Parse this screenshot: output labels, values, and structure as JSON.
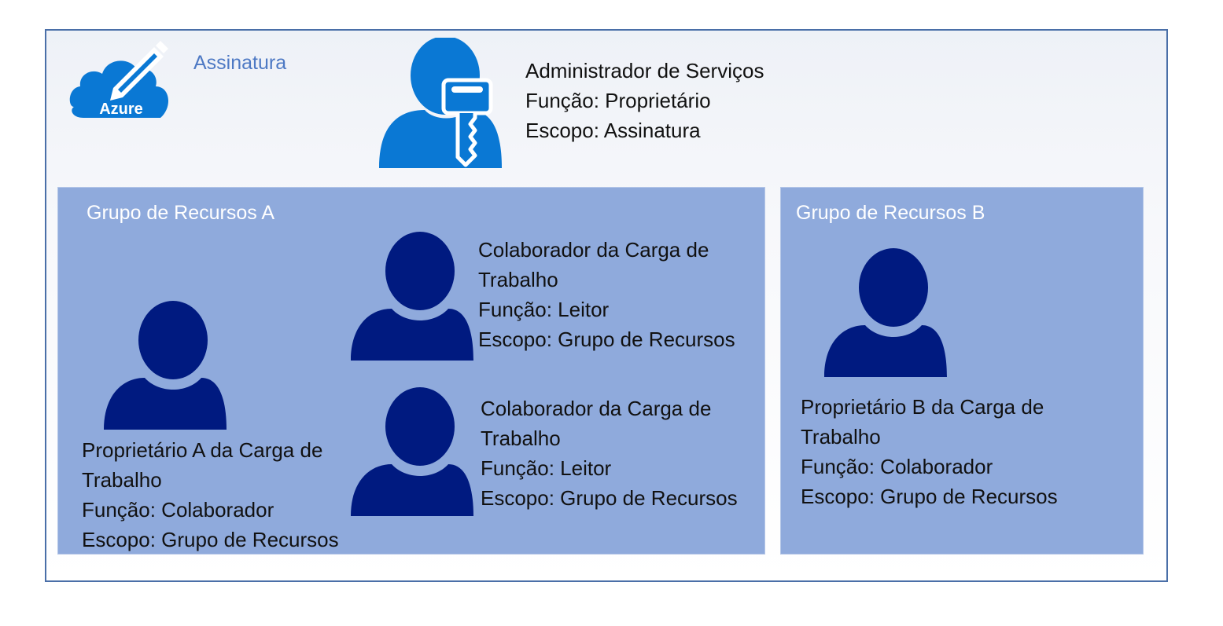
{
  "subscription": {
    "label": "Assinatura",
    "logo_text": "Azure",
    "logo_icon": "azure-cloud-pencil-icon"
  },
  "admin": {
    "icon": "user-key-icon",
    "name": "Administrador de Serviços",
    "role": "Função: Proprietário",
    "scope": "Escopo: Assinatura"
  },
  "group_a": {
    "title": "Grupo de Recursos A",
    "owner": {
      "icon": "user-icon",
      "name_line1": "Proprietário A da Carga de",
      "name_line2": "Trabalho",
      "role": "Função: Colaborador",
      "scope": "Escopo: Grupo de Recursos"
    },
    "contributor_1": {
      "icon": "user-icon",
      "name_line1": "Colaborador da Carga de",
      "name_line2": "Trabalho",
      "role": "Função: Leitor",
      "scope": "Escopo: Grupo de Recursos"
    },
    "contributor_2": {
      "icon": "user-icon",
      "name_line1": "Colaborador da Carga de",
      "name_line2": "Trabalho",
      "role": "Função: Leitor",
      "scope": "Escopo: Grupo de Recursos"
    }
  },
  "group_b": {
    "title": "Grupo de Recursos B",
    "owner": {
      "icon": "user-icon",
      "name_line1": "Proprietário B da Carga de",
      "name_line2": "Trabalho",
      "role": "Função: Colaborador",
      "scope": "Escopo: Grupo de Recursos"
    }
  },
  "colors": {
    "border": "#4a6fa8",
    "group_fill": "#8faadc",
    "user_dark": "#001a80",
    "admin_blue": "#0a78d4",
    "azure_blue": "#0a78d4",
    "label_blue": "#4e79c4"
  }
}
